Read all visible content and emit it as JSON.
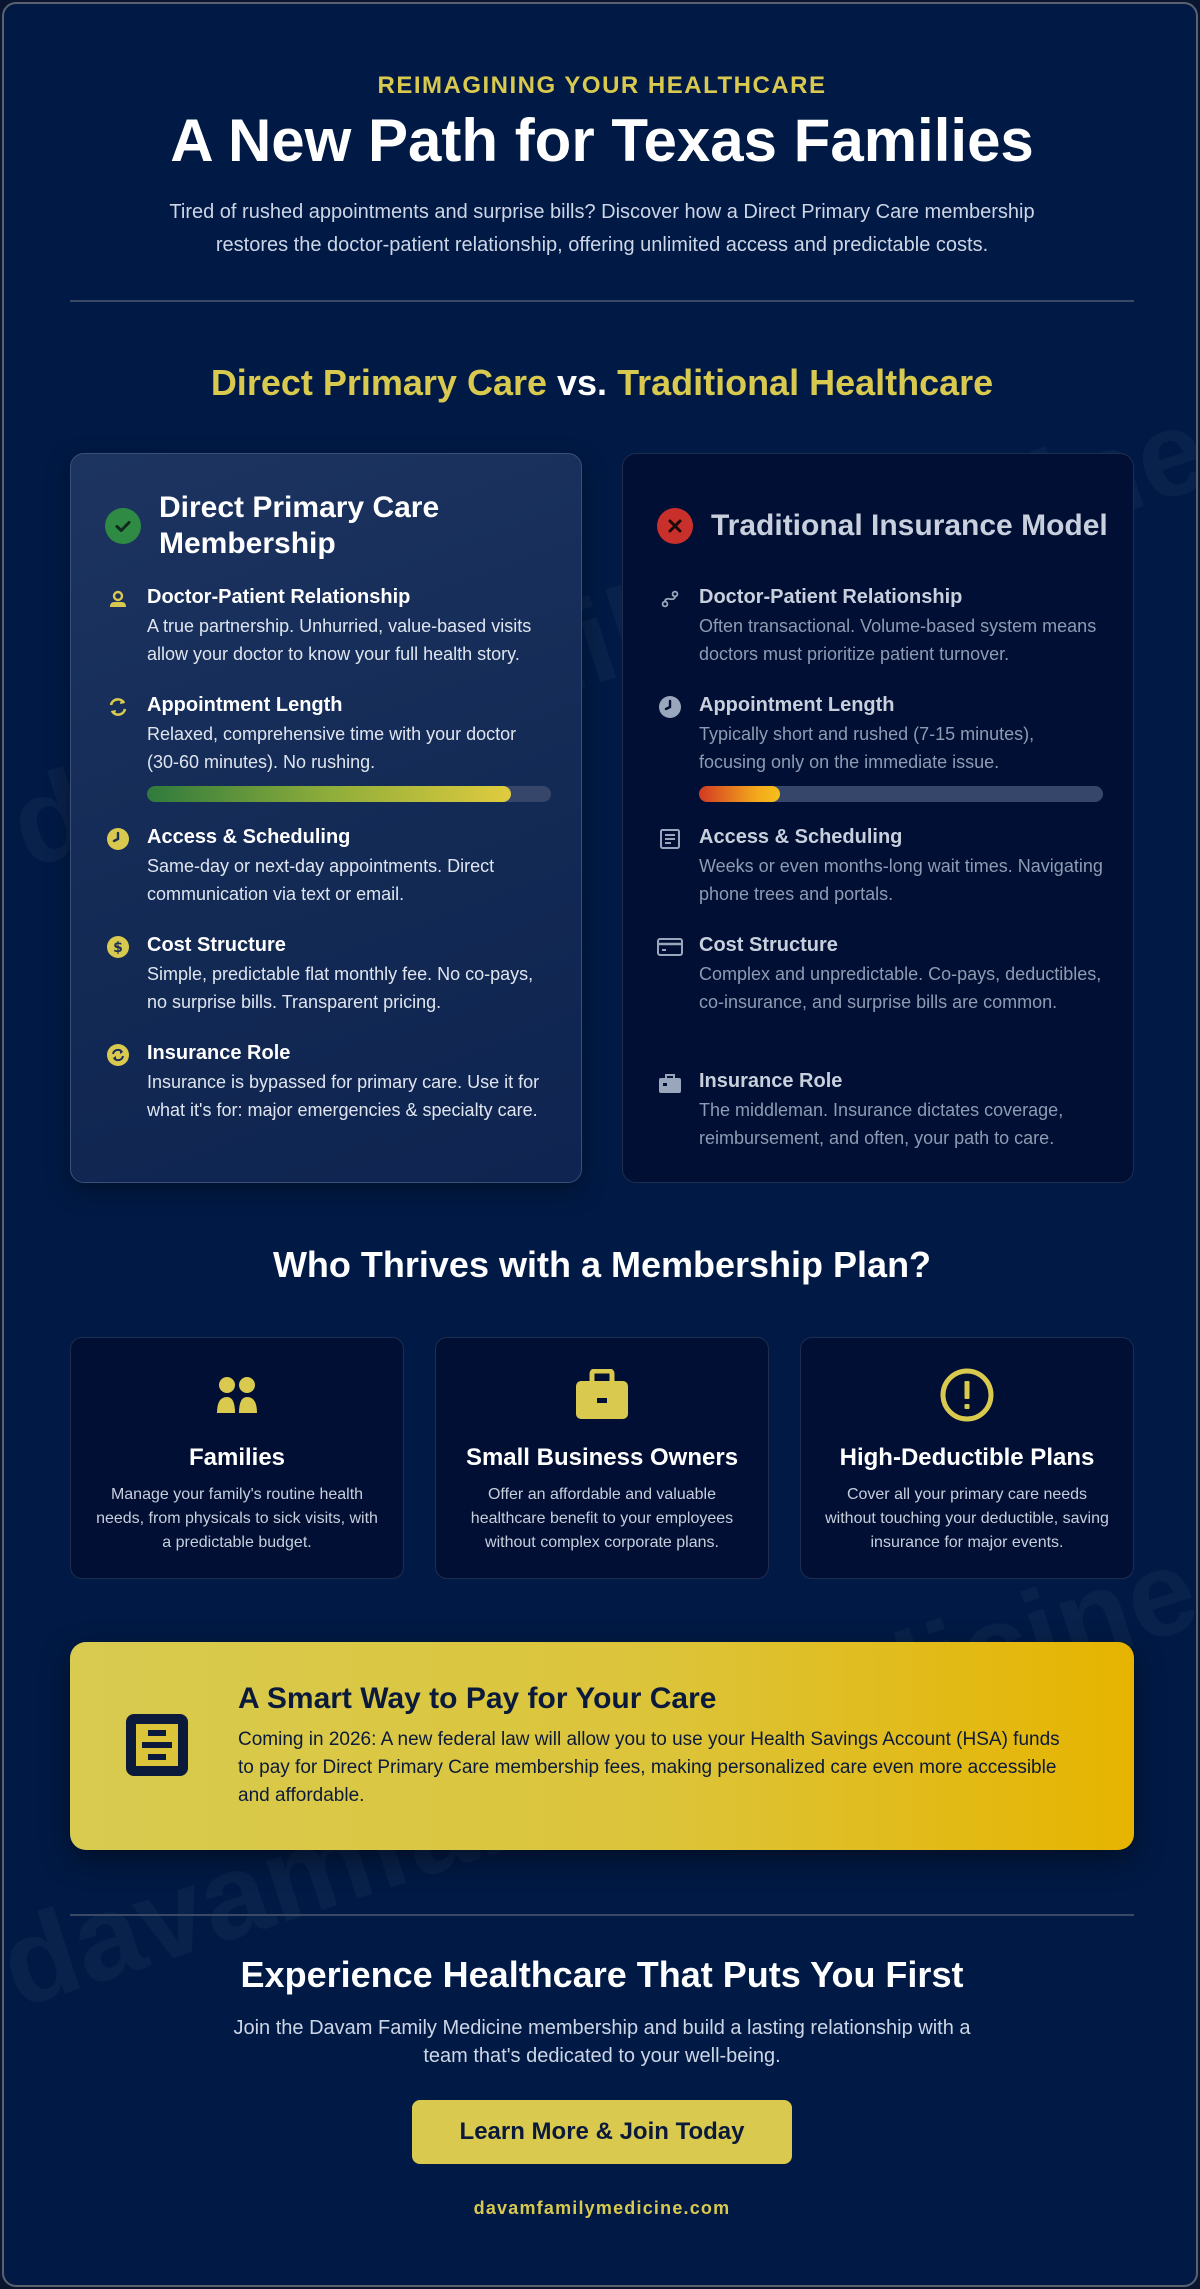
{
  "header": {
    "eyebrow": "REIMAGINING YOUR HEALTHCARE",
    "title": "A New Path for Texas Families",
    "subtitle": "Tired of rushed appointments and surprise bills? Discover how a Direct Primary Care membership restores the doctor-patient relationship, offering unlimited access and predictable costs."
  },
  "watermark": "davamfamilymedicine.com",
  "comparison": {
    "title_part1": "Direct Primary Care",
    "title_vs": " vs. ",
    "title_part2": "Traditional Healthcare",
    "dpc": {
      "title": "Direct Primary Care Membership",
      "icon": "check-circle-icon",
      "accent_color": "#2f8a43",
      "items": [
        {
          "icon": "user-icon",
          "title": "Doctor-Patient Relationship",
          "desc": "A true partnership. Unhurried, value-based visits allow your doctor to know your full health story."
        },
        {
          "icon": "refresh-icon",
          "title": "Appointment Length",
          "desc": "Relaxed, comprehensive time with your doctor (30-60 minutes). No rushing.",
          "bar_fill": 0.9
        },
        {
          "icon": "clock-icon",
          "title": "Access & Scheduling",
          "desc": "Same-day or next-day appointments. Direct communication via text or email."
        },
        {
          "icon": "dollar-icon",
          "title": "Cost Structure",
          "desc": "Simple, predictable flat monthly fee. No co-pays, no surprise bills. Transparent pricing."
        },
        {
          "icon": "cycle-icon",
          "title": "Insurance Role",
          "desc": "Insurance is bypassed for primary care. Use it for what it's for: major emergencies & specialty care."
        }
      ]
    },
    "trad": {
      "title": "Traditional Insurance Model",
      "icon": "x-circle-icon",
      "accent_color": "#c9302c",
      "items": [
        {
          "icon": "route-icon",
          "title": "Doctor-Patient Relationship",
          "desc": "Often transactional. Volume-based system means doctors must prioritize patient turnover."
        },
        {
          "icon": "clock-icon",
          "title": "Appointment Length",
          "desc": "Typically short and rushed (7-15 minutes), focusing only on the immediate issue.",
          "bar_fill": 0.2
        },
        {
          "icon": "form-icon",
          "title": "Access & Scheduling",
          "desc": "Weeks or even months-long wait times. Navigating phone trees and portals."
        },
        {
          "icon": "credit-card-icon",
          "title": "Cost Structure",
          "desc": "Complex and unpredictable. Co-pays, deductibles, co-insurance, and surprise bills are common."
        },
        {
          "icon": "briefcase-medical-icon",
          "title": "Insurance Role",
          "desc": "The middleman. Insurance dictates coverage, reimbursement, and often, your path to care."
        }
      ]
    }
  },
  "who": {
    "title": "Who Thrives with a Membership Plan?",
    "cards": [
      {
        "icon": "family-icon",
        "title": "Families",
        "desc": "Manage your family's routine health needs, from physicals to sick visits, with a predictable budget."
      },
      {
        "icon": "briefcase-icon",
        "title": "Small Business Owners",
        "desc": "Offer an affordable and valuable healthcare benefit to your employees without complex corporate plans."
      },
      {
        "icon": "alert-circle-icon",
        "title": "High-Deductible Plans",
        "desc": "Cover all your primary care needs without touching your deductible, saving insurance for major events."
      }
    ]
  },
  "hsa": {
    "icon": "receipt-icon",
    "title": "A Smart Way to Pay for Your Care",
    "text": "Coming in 2026: A new federal law will allow you to use your Health Savings Account (HSA) funds to pay for Direct Primary Care membership fees, making personalized care even more accessible and affordable."
  },
  "cta": {
    "title": "Experience Healthcare That Puts You First",
    "subtitle": "Join the Davam Family Medicine membership and build a lasting relationship with a team that's dedicated to your well-being.",
    "button": "Learn More & Join Today",
    "site": "davamfamilymedicine.com"
  },
  "colors": {
    "background": "#001a45",
    "accent_yellow": "#d9c94f",
    "dpc_card": "#1a3160",
    "trad_card": "#000f33"
  }
}
